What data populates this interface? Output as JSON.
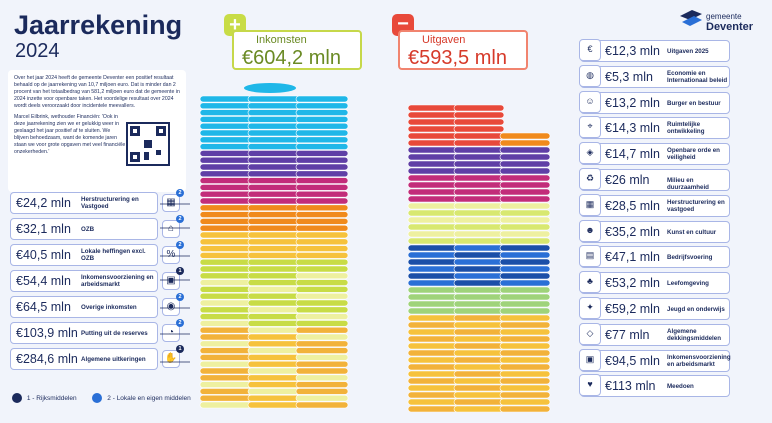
{
  "header": {
    "title": "Jaarrekening",
    "year": "2024"
  },
  "logo": {
    "line1": "gemeente",
    "line2": "Deventer"
  },
  "summary": {
    "p1": "Over het jaar 2024 heeft de gemeente Deventer een positief resultaat behaald op de jaarrekening van 10,7 miljoen euro. Dat is minder dan 2 procent van het totaalbedrag van 581,2 miljoen euro dat de gemeente in 2024 inzette voor openbare taken. Het voordelige resultaat over 2024 wordt deels veroorzaakt door incidentele meevallers.",
    "p2": "Marcel Eilbrink, wethouder Financiën: 'Ook in deze jaarrekening zien we er gelukkig weer in geslaagd het jaar positief af te sluiten. We blijven behoedzaam, want de komende jaren staan we voor grote opgaven met veel financiële onzekerheden.'"
  },
  "income": {
    "label": "Inkomsten",
    "total": "€604,2 mln"
  },
  "expenses": {
    "label": "Uitgaven",
    "total": "€593,5 mln"
  },
  "income_items": [
    {
      "amount": "€24,2 mln",
      "name": "Herstructurering en Vastgoed",
      "badge": "2",
      "icon": "building-icon"
    },
    {
      "amount": "€32,1 mln",
      "name": "OZB",
      "badge": "2",
      "icon": "house-icon"
    },
    {
      "amount": "€40,5 mln",
      "name": "Lokale heffingen excl. OZB",
      "badge": "2",
      "icon": "percent-icon"
    },
    {
      "amount": "€54,4 mln",
      "name": "Inkomensvoorziening en arbeidsmarkt",
      "badge": "1",
      "icon": "wallet-icon"
    },
    {
      "amount": "€64,5 mln",
      "name": "Overige inkomsten",
      "badge": "2",
      "icon": "coins-icon"
    },
    {
      "amount": "€103,9 mln",
      "name": "Putting uit de reserves",
      "badge": "2",
      "icon": "piggy-icon"
    },
    {
      "amount": "€284,6 mln",
      "name": "Algemene uitkeringen",
      "badge": "1",
      "icon": "hand-icon"
    }
  ],
  "expense_items": [
    {
      "amount": "€12,3 mln",
      "name": "Uitgaven 2025",
      "icon": "euro-icon"
    },
    {
      "amount": "€5,3 mln",
      "name": "Economie en Internationaal beleid",
      "icon": "globe-icon"
    },
    {
      "amount": "€13,2 mln",
      "name": "Burger en bestuur",
      "icon": "people-icon"
    },
    {
      "amount": "€14,3 mln",
      "name": "Ruimtelijke ontwikkeling",
      "icon": "crane-icon"
    },
    {
      "amount": "€14,7 mln",
      "name": "Openbare orde en veiligheid",
      "icon": "shield-icon"
    },
    {
      "amount": "€26 mln",
      "name": "Milieu en duurzaamheid",
      "icon": "recycle-icon"
    },
    {
      "amount": "€28,5 mln",
      "name": "Herstructurering en vastgoed",
      "icon": "building-icon"
    },
    {
      "amount": "€35,2 mln",
      "name": "Kunst en cultuur",
      "icon": "masks-icon"
    },
    {
      "amount": "€47,1 mln",
      "name": "Bedrijfsvoering",
      "icon": "document-icon"
    },
    {
      "amount": "€53,2 mln",
      "name": "Leefomgeving",
      "icon": "tree-icon"
    },
    {
      "amount": "€59,2 mln",
      "name": "Jeugd en onderwijs",
      "icon": "child-icon"
    },
    {
      "amount": "€77 mln",
      "name": "Algemene dekkingsmiddelen",
      "icon": "shapes-icon"
    },
    {
      "amount": "€94,5 mln",
      "name": "Inkomensvoorziening en arbeidsmarkt",
      "icon": "wallet-icon"
    },
    {
      "amount": "€113 mln",
      "name": "Meedoen",
      "icon": "heart-icon"
    }
  ],
  "legend": {
    "item1": "1 - Rijksmiddelen",
    "item2": "2 - Lokale en eigen middelen"
  },
  "colors": {
    "navy": "#1b2a5c",
    "income": "#6a8a24",
    "expense": "#d63a2a",
    "border": "#a9b6e6"
  }
}
